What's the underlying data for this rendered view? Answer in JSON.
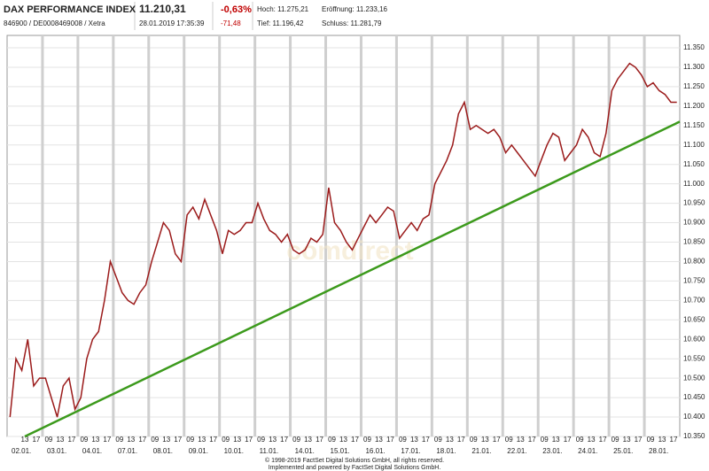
{
  "header": {
    "name": "DAX PERFORMANCE INDEX",
    "ids": "846900 / DE0008469008 / Xetra",
    "price": "11.210,31",
    "timestamp": "28.01.2019 17:35:39",
    "change_pct": "-0,63%",
    "change_abs": "-71,48",
    "high": "Hoch: 11.275,21",
    "open": "Eröffnung: 11.233,16",
    "low": "Tief: 11.196,42",
    "close": "Schluss: 11.281,79"
  },
  "chart_data": {
    "type": "line",
    "watermark": "comdirect",
    "categories": [
      "02.01.",
      "03.01.",
      "04.01.",
      "07.01.",
      "08.01.",
      "09.01.",
      "10.01.",
      "11.01.",
      "14.01.",
      "15.01.",
      "16.01.",
      "17.01.",
      "18.01.",
      "21.01.",
      "22.01.",
      "23.01.",
      "24.01.",
      "25.01.",
      "28.01."
    ],
    "hours": [
      "09",
      "13",
      "17"
    ],
    "series": [
      {
        "color": "#9b1b1b",
        "values": [
          [
            10400,
            10550,
            10520,
            10600,
            10480,
            10500
          ],
          [
            10500,
            10450,
            10400,
            10480,
            10500,
            10420
          ],
          [
            10450,
            10550,
            10600,
            10620,
            10700,
            10800
          ],
          [
            10760,
            10720,
            10700,
            10690,
            10720,
            10740
          ],
          [
            10800,
            10850,
            10900,
            10880,
            10820,
            10800
          ],
          [
            10920,
            10940,
            10910,
            10960,
            10920,
            10880
          ],
          [
            10820,
            10880,
            10870,
            10880,
            10900,
            10900
          ],
          [
            10950,
            10910,
            10880,
            10870,
            10850,
            10870
          ],
          [
            10830,
            10820,
            10830,
            10860,
            10850,
            10870
          ],
          [
            10990,
            10900,
            10880,
            10850,
            10830,
            10860
          ],
          [
            10890,
            10920,
            10900,
            10920,
            10940,
            10930
          ],
          [
            10860,
            10880,
            10900,
            10880,
            10910,
            10920
          ],
          [
            11000,
            11030,
            11060,
            11100,
            11180,
            11210
          ],
          [
            11140,
            11150,
            11140,
            11130,
            11140,
            11120
          ],
          [
            11080,
            11100,
            11080,
            11060,
            11040,
            11020
          ],
          [
            11060,
            11100,
            11130,
            11120,
            11060,
            11080
          ],
          [
            11100,
            11140,
            11120,
            11080,
            11070,
            11130
          ],
          [
            11240,
            11270,
            11290,
            11310,
            11300,
            11280
          ],
          [
            11250,
            11260,
            11240,
            11230,
            11210,
            11210
          ]
        ]
      }
    ],
    "trendline": {
      "color": "#3c9a1c",
      "values": [
        10350,
        11160
      ]
    },
    "ylim": [
      10350,
      11350
    ],
    "yticks": [
      {
        "value": 10350,
        "label": "10.350"
      },
      {
        "value": 10400,
        "label": "10.400"
      },
      {
        "value": 10450,
        "label": "10.450"
      },
      {
        "value": 10500,
        "label": "10.500"
      },
      {
        "value": 10550,
        "label": "10.550"
      },
      {
        "value": 10600,
        "label": "10.600"
      },
      {
        "value": 10650,
        "label": "10.650"
      },
      {
        "value": 10700,
        "label": "10.700"
      },
      {
        "value": 10750,
        "label": "10.750"
      },
      {
        "value": 10800,
        "label": "10.800"
      },
      {
        "value": 10850,
        "label": "10.850"
      },
      {
        "value": 10900,
        "label": "10.900"
      },
      {
        "value": 10950,
        "label": "10.950"
      },
      {
        "value": 11000,
        "label": "11.000"
      },
      {
        "value": 11050,
        "label": "11.050"
      },
      {
        "value": 11100,
        "label": "11.100"
      },
      {
        "value": 11150,
        "label": "11.150"
      },
      {
        "value": 11200,
        "label": "11.200"
      },
      {
        "value": 11250,
        "label": "11.250"
      },
      {
        "value": 11300,
        "label": "11.300"
      },
      {
        "value": 11350,
        "label": "11.350"
      }
    ],
    "grid": true
  },
  "footer": {
    "line1": "© 1998-2019 FactSet Digital Solutions GmbH, all rights reserved.",
    "line2": "Implemented and powered by FactSet Digital Solutions GmbH."
  }
}
